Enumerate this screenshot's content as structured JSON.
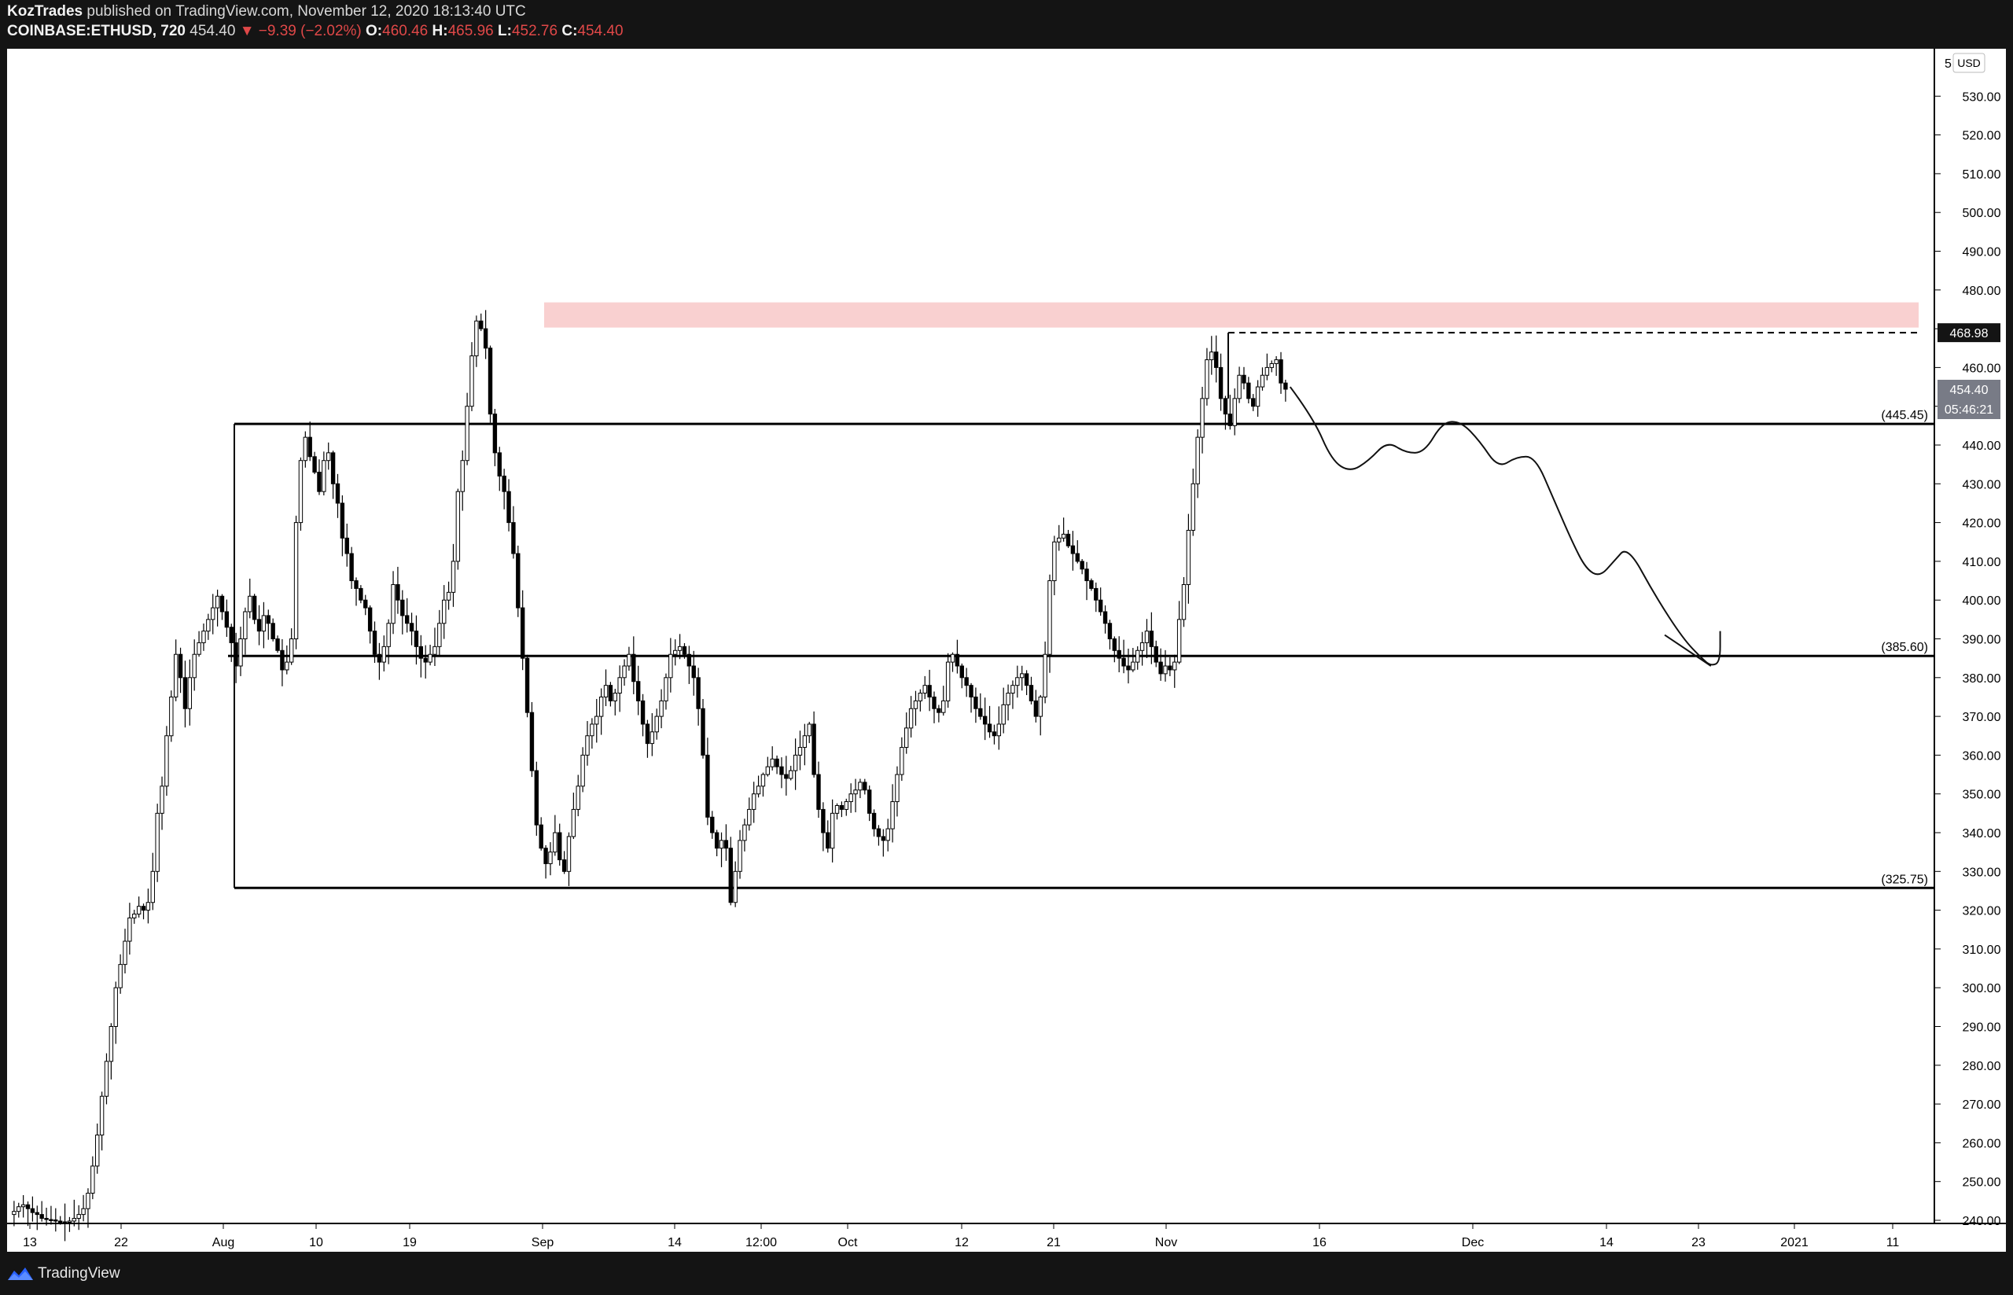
{
  "header": {
    "publisher": "KozTrades",
    "published_text": " published on TradingView.com, November 12, 2020 18:13:40 UTC",
    "symbol": "COINBASE:ETHUSD, 720",
    "last": "454.40",
    "change": "▼ −9.39 (−2.02%)",
    "o_label": "O:",
    "o_value": "460.46",
    "h_label": "H:",
    "h_value": "465.96",
    "l_label": "L:",
    "l_value": "452.76",
    "c_label": "C:",
    "c_value": "454.40"
  },
  "footer": {
    "brand": "TradingView",
    "logo_icon": "tradingview-logo-icon"
  },
  "price_axis": {
    "currency": "USD",
    "top_partial_label": "5",
    "labels": [
      "530.00",
      "520.00",
      "510.00",
      "500.00",
      "490.00",
      "480.00",
      "470.00",
      "460.00",
      "450.00",
      "440.00",
      "430.00",
      "420.00",
      "410.00",
      "400.00",
      "390.00",
      "380.00",
      "370.00",
      "360.00",
      "350.00",
      "340.00",
      "330.00",
      "320.00",
      "310.00",
      "300.00",
      "290.00",
      "280.00",
      "270.00",
      "260.00",
      "250.00",
      "240.00"
    ],
    "marker_resistance": "468.98",
    "marker_last": "454.40",
    "marker_countdown": "05:46:21"
  },
  "time_axis": {
    "labels": [
      "13",
      "22",
      "Aug",
      "10",
      "19",
      "Sep",
      "14",
      "12:00",
      "Oct",
      "12",
      "21",
      "Nov",
      "16",
      "Dec",
      "14",
      "23",
      "2021",
      "11"
    ]
  },
  "colors": {
    "zone_fill": "#f9d0d0",
    "up_candle": "#ffffff",
    "down_candle": "#000000",
    "badge_dark": "#141414",
    "badge_gray": "#787b86"
  },
  "chart_data": {
    "type": "candlestick",
    "symbol": "COINBASE:ETHUSD",
    "interval": "720",
    "currency": "USD",
    "ylim": [
      240,
      534
    ],
    "y_ticks": [
      240,
      250,
      260,
      270,
      280,
      290,
      300,
      310,
      320,
      330,
      340,
      350,
      360,
      370,
      380,
      390,
      400,
      410,
      420,
      430,
      440,
      450,
      460,
      470,
      480,
      490,
      500,
      510,
      520,
      530
    ],
    "x_tick_labels": [
      "13",
      "22",
      "Aug",
      "10",
      "19",
      "Sep",
      "14",
      "12:00",
      "Oct",
      "12",
      "21",
      "Nov",
      "16",
      "Dec",
      "14",
      "23",
      "2021",
      "11"
    ],
    "horizontal_levels": [
      {
        "label": "(445.45)",
        "price": 445.45
      },
      {
        "label": "(385.60)",
        "price": 385.6
      },
      {
        "label": "(325.75)",
        "price": 325.75
      }
    ],
    "resistance_zone": {
      "from": 470.3,
      "to": 476.8
    },
    "resistance_line": 468.98,
    "last_price": 454.4,
    "close_path": [
      [
        0,
        241.5
      ],
      [
        1,
        242.3
      ],
      [
        2,
        243.5
      ],
      [
        3,
        244
      ],
      [
        4,
        243
      ],
      [
        5,
        242
      ],
      [
        6,
        241.5
      ],
      [
        7,
        240.5
      ],
      [
        8,
        240.2
      ],
      [
        9,
        240.1
      ],
      [
        10,
        239.8
      ],
      [
        11,
        239.6
      ],
      [
        12,
        239.5
      ],
      [
        13,
        239.8
      ],
      [
        14,
        240.5
      ],
      [
        15,
        241.5
      ],
      [
        16,
        243
      ],
      [
        17,
        247
      ],
      [
        18,
        254
      ],
      [
        19,
        262
      ],
      [
        20,
        272
      ],
      [
        21,
        281
      ],
      [
        22,
        290
      ],
      [
        23,
        300
      ],
      [
        24,
        306
      ],
      [
        25,
        312
      ],
      [
        26,
        318
      ],
      [
        27,
        319
      ],
      [
        28,
        321
      ],
      [
        29,
        320
      ],
      [
        30,
        322
      ],
      [
        31,
        330
      ],
      [
        32,
        345
      ],
      [
        33,
        352
      ],
      [
        34,
        365
      ],
      [
        35,
        375
      ],
      [
        36,
        386
      ],
      [
        37,
        380
      ],
      [
        38,
        372
      ],
      [
        39,
        380
      ],
      [
        40,
        386
      ],
      [
        41,
        389
      ],
      [
        42,
        392
      ],
      [
        43,
        395
      ],
      [
        44,
        398
      ],
      [
        45,
        401
      ],
      [
        46,
        397
      ],
      [
        47,
        393
      ],
      [
        48,
        389
      ],
      [
        49,
        383
      ],
      [
        50,
        390
      ],
      [
        51,
        397
      ],
      [
        52,
        401
      ],
      [
        53,
        395
      ],
      [
        54,
        392
      ],
      [
        55,
        396
      ],
      [
        56,
        394
      ],
      [
        57,
        390
      ],
      [
        58,
        387
      ],
      [
        59,
        382
      ],
      [
        60,
        384
      ],
      [
        61,
        390
      ],
      [
        62,
        420
      ],
      [
        63,
        436
      ],
      [
        64,
        442
      ],
      [
        65,
        437
      ],
      [
        66,
        433
      ],
      [
        67,
        428
      ],
      [
        68,
        436
      ],
      [
        69,
        438
      ],
      [
        70,
        430
      ],
      [
        71,
        425
      ],
      [
        72,
        416
      ],
      [
        73,
        412
      ],
      [
        74,
        405
      ],
      [
        75,
        403
      ],
      [
        76,
        400
      ],
      [
        77,
        398
      ],
      [
        78,
        392
      ],
      [
        79,
        386
      ],
      [
        80,
        384
      ],
      [
        81,
        388
      ],
      [
        82,
        394
      ],
      [
        83,
        404
      ],
      [
        84,
        400
      ],
      [
        85,
        396
      ],
      [
        86,
        394
      ],
      [
        87,
        392
      ],
      [
        88,
        388
      ],
      [
        89,
        385
      ],
      [
        90,
        384
      ],
      [
        91,
        386
      ],
      [
        92,
        388
      ],
      [
        93,
        394
      ],
      [
        94,
        400
      ],
      [
        95,
        402
      ],
      [
        96,
        410
      ],
      [
        97,
        428
      ],
      [
        98,
        436
      ],
      [
        99,
        450
      ],
      [
        100,
        463
      ],
      [
        101,
        472
      ],
      [
        102,
        470
      ],
      [
        103,
        465
      ],
      [
        104,
        448
      ],
      [
        105,
        438
      ],
      [
        106,
        432
      ],
      [
        107,
        428
      ],
      [
        108,
        420
      ],
      [
        109,
        412
      ],
      [
        110,
        398
      ],
      [
        111,
        385
      ],
      [
        112,
        371
      ],
      [
        113,
        356
      ],
      [
        114,
        342
      ],
      [
        115,
        336
      ],
      [
        116,
        332
      ],
      [
        117,
        335
      ],
      [
        118,
        340
      ],
      [
        119,
        333
      ],
      [
        120,
        330
      ],
      [
        121,
        339
      ],
      [
        122,
        346
      ],
      [
        123,
        352
      ],
      [
        124,
        360
      ],
      [
        125,
        365
      ],
      [
        126,
        368
      ],
      [
        127,
        370
      ],
      [
        128,
        375
      ],
      [
        129,
        378
      ],
      [
        130,
        374
      ],
      [
        131,
        376
      ],
      [
        132,
        380
      ],
      [
        133,
        383
      ],
      [
        134,
        386
      ],
      [
        135,
        379
      ],
      [
        136,
        374
      ],
      [
        137,
        368
      ],
      [
        138,
        363
      ],
      [
        139,
        366
      ],
      [
        140,
        370
      ],
      [
        141,
        374
      ],
      [
        142,
        380
      ],
      [
        143,
        386
      ],
      [
        144,
        387
      ],
      [
        145,
        388
      ],
      [
        146,
        386
      ],
      [
        147,
        383
      ],
      [
        148,
        380
      ],
      [
        149,
        372
      ],
      [
        150,
        360
      ],
      [
        151,
        344
      ],
      [
        152,
        340
      ],
      [
        153,
        336
      ],
      [
        154,
        338
      ],
      [
        155,
        336
      ],
      [
        156,
        322
      ],
      [
        157,
        330
      ],
      [
        158,
        338
      ],
      [
        159,
        342
      ],
      [
        160,
        346
      ],
      [
        161,
        350
      ],
      [
        162,
        352
      ],
      [
        163,
        355
      ],
      [
        164,
        357
      ],
      [
        165,
        359
      ],
      [
        166,
        357
      ],
      [
        167,
        355
      ],
      [
        168,
        354
      ],
      [
        169,
        356
      ],
      [
        170,
        360
      ],
      [
        171,
        362
      ],
      [
        172,
        365
      ],
      [
        173,
        368
      ],
      [
        174,
        355
      ],
      [
        175,
        346
      ],
      [
        176,
        340
      ],
      [
        177,
        336
      ],
      [
        178,
        345
      ],
      [
        179,
        347
      ],
      [
        180,
        346
      ],
      [
        181,
        348
      ],
      [
        182,
        350
      ],
      [
        183,
        351
      ],
      [
        184,
        353
      ],
      [
        185,
        351
      ],
      [
        186,
        345
      ],
      [
        187,
        341
      ],
      [
        188,
        339
      ],
      [
        189,
        338
      ],
      [
        190,
        341
      ],
      [
        191,
        348
      ],
      [
        192,
        355
      ],
      [
        193,
        362
      ],
      [
        194,
        367
      ],
      [
        195,
        372
      ],
      [
        196,
        374
      ],
      [
        197,
        376
      ],
      [
        198,
        378
      ],
      [
        199,
        375
      ],
      [
        200,
        372
      ],
      [
        201,
        371
      ],
      [
        202,
        374
      ],
      [
        203,
        384
      ],
      [
        204,
        386
      ],
      [
        205,
        383
      ],
      [
        206,
        380
      ],
      [
        207,
        378
      ],
      [
        208,
        375
      ],
      [
        209,
        372
      ],
      [
        210,
        370
      ],
      [
        211,
        368
      ],
      [
        212,
        366
      ],
      [
        213,
        365
      ],
      [
        214,
        368
      ],
      [
        215,
        373
      ],
      [
        216,
        376
      ],
      [
        217,
        378
      ],
      [
        218,
        380
      ],
      [
        219,
        381
      ],
      [
        220,
        378
      ],
      [
        221,
        374
      ],
      [
        222,
        370
      ],
      [
        223,
        375
      ],
      [
        224,
        386
      ],
      [
        225,
        405
      ],
      [
        226,
        415
      ],
      [
        227,
        416
      ],
      [
        228,
        417
      ],
      [
        229,
        414
      ],
      [
        230,
        412
      ],
      [
        231,
        410
      ],
      [
        232,
        408
      ],
      [
        233,
        405
      ],
      [
        234,
        403
      ],
      [
        235,
        400
      ],
      [
        236,
        397
      ],
      [
        237,
        394
      ],
      [
        238,
        390
      ],
      [
        239,
        387
      ],
      [
        240,
        385
      ],
      [
        241,
        383
      ],
      [
        242,
        382
      ],
      [
        243,
        384
      ],
      [
        244,
        387
      ],
      [
        245,
        389
      ],
      [
        246,
        392
      ],
      [
        247,
        388
      ],
      [
        248,
        384
      ],
      [
        249,
        381
      ],
      [
        250,
        383
      ],
      [
        251,
        382
      ],
      [
        252,
        384
      ],
      [
        253,
        395
      ],
      [
        254,
        404
      ],
      [
        255,
        418
      ],
      [
        256,
        430
      ],
      [
        257,
        442
      ],
      [
        258,
        452
      ],
      [
        259,
        462
      ],
      [
        260,
        464
      ],
      [
        261,
        460
      ],
      [
        262,
        452
      ],
      [
        263,
        448
      ],
      [
        264,
        445
      ],
      [
        265,
        452
      ],
      [
        266,
        458
      ],
      [
        267,
        456
      ],
      [
        268,
        452
      ],
      [
        269,
        450
      ],
      [
        270,
        455
      ],
      [
        271,
        458
      ],
      [
        272,
        460
      ],
      [
        273,
        461
      ],
      [
        274,
        462
      ],
      [
        275,
        456
      ],
      [
        276,
        454.4
      ]
    ],
    "drawings": [
      {
        "type": "freehand_projection",
        "points": [
          [
            277,
            455
          ],
          [
            282,
            447
          ],
          [
            286,
            436
          ],
          [
            290,
            433
          ],
          [
            294,
            436
          ],
          [
            298,
            441
          ],
          [
            302,
            438
          ],
          [
            306,
            438
          ],
          [
            310,
            446
          ],
          [
            314,
            446
          ],
          [
            318,
            441
          ],
          [
            322,
            434
          ],
          [
            326,
            437
          ],
          [
            330,
            437
          ],
          [
            334,
            426
          ],
          [
            338,
            415
          ],
          [
            341,
            408
          ],
          [
            344,
            406
          ],
          [
            347,
            410
          ],
          [
            350,
            414
          ],
          [
            356,
            401
          ],
          [
            362,
            390
          ],
          [
            366,
            385
          ],
          [
            368,
            383
          ],
          [
            370,
            384
          ],
          [
            370,
            392
          ]
        ]
      },
      {
        "type": "arrowhead",
        "points": [
          [
            358,
            391
          ],
          [
            368,
            383
          ]
        ]
      }
    ]
  }
}
